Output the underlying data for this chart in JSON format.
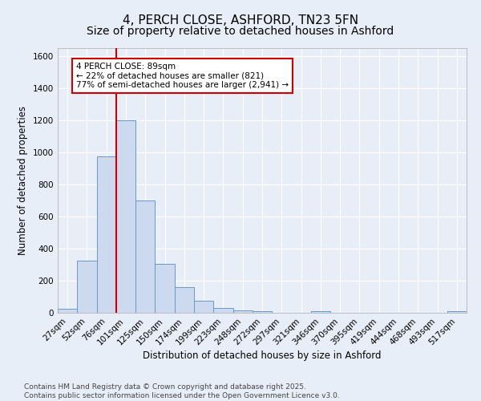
{
  "title": "4, PERCH CLOSE, ASHFORD, TN23 5FN",
  "subtitle": "Size of property relative to detached houses in Ashford",
  "xlabel": "Distribution of detached houses by size in Ashford",
  "ylabel": "Number of detached properties",
  "bar_labels": [
    "27sqm",
    "52sqm",
    "76sqm",
    "101sqm",
    "125sqm",
    "150sqm",
    "174sqm",
    "199sqm",
    "223sqm",
    "248sqm",
    "272sqm",
    "297sqm",
    "321sqm",
    "346sqm",
    "370sqm",
    "395sqm",
    "419sqm",
    "444sqm",
    "468sqm",
    "493sqm",
    "517sqm"
  ],
  "bar_values": [
    25,
    325,
    975,
    1200,
    700,
    305,
    160,
    75,
    30,
    15,
    10,
    0,
    0,
    10,
    0,
    0,
    0,
    0,
    0,
    0,
    10
  ],
  "bar_color": "#ccd9ee",
  "bar_edge_color": "#6699cc",
  "vline_color": "#cc0000",
  "annotation_text": "4 PERCH CLOSE: 89sqm\n← 22% of detached houses are smaller (821)\n77% of semi-detached houses are larger (2,941) →",
  "annotation_box_color": "#ffffff",
  "annotation_box_edge_color": "#cc0000",
  "ylim": [
    0,
    1650
  ],
  "yticks": [
    0,
    200,
    400,
    600,
    800,
    1000,
    1200,
    1400,
    1600
  ],
  "bg_color": "#e8eef8",
  "grid_color": "#ffffff",
  "footer_line1": "Contains HM Land Registry data © Crown copyright and database right 2025.",
  "footer_line2": "Contains public sector information licensed under the Open Government Licence v3.0.",
  "title_fontsize": 11,
  "subtitle_fontsize": 10,
  "axis_label_fontsize": 8.5,
  "tick_fontsize": 7.5,
  "annotation_fontsize": 7.5,
  "footer_fontsize": 6.5
}
